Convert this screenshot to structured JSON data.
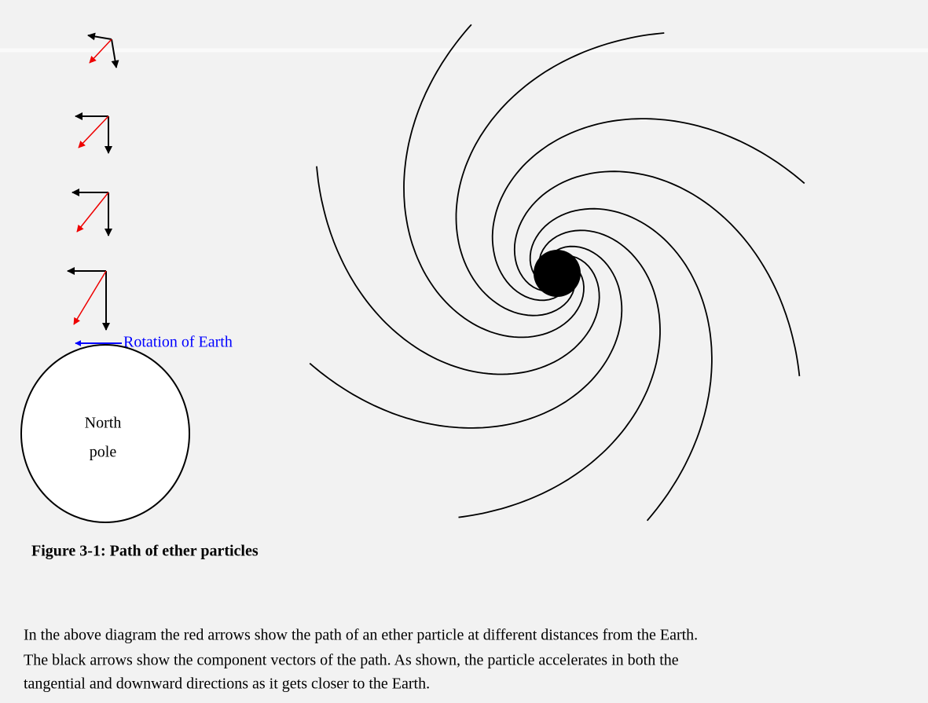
{
  "figure": {
    "rotation_label": "Rotation of Earth",
    "earth_label": [
      "North",
      "pole"
    ],
    "caption": "Figure 3-1: Path of ether particles"
  },
  "paragraph": [
    "In the above diagram the red arrows show the path of an ether particle at different distances from the Earth.",
    "The black arrows show the component vectors of the path.  As shown, the particle accelerates in both the",
    "tangential and downward directions as it gets closer to the Earth."
  ]
}
